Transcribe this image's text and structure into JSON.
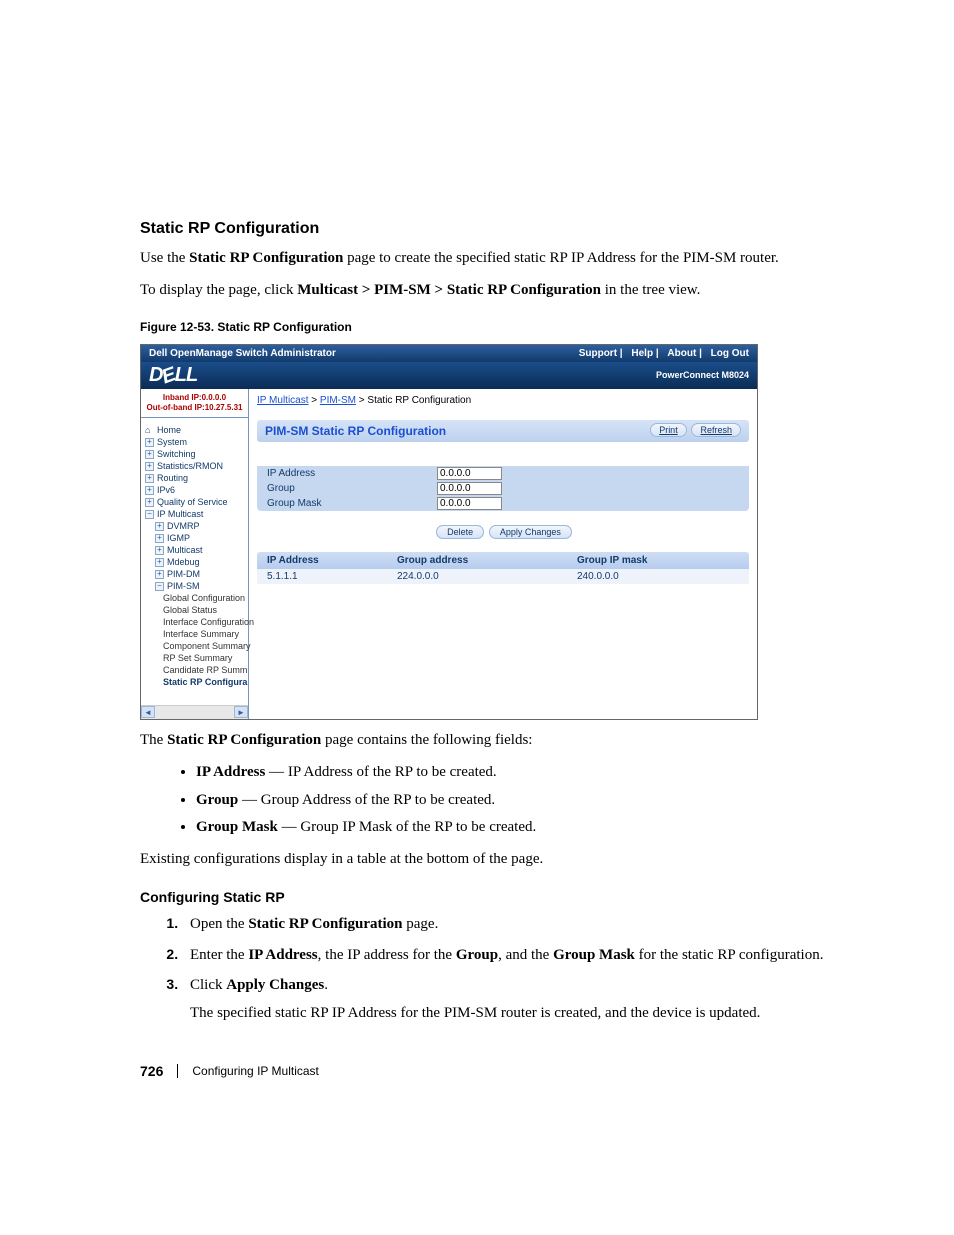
{
  "section": {
    "title": "Static RP Configuration",
    "intro_pre": "Use the ",
    "intro_bold": "Static RP Configuration",
    "intro_post": " page to create the specified static RP IP Address for the PIM-SM router.",
    "nav_pre": "To display the page, click ",
    "nav_bold": "Multicast > PIM-SM > Static RP Configuration",
    "nav_post": " in the tree view."
  },
  "figure": {
    "caption": "Figure 12-53.    Static RP Configuration"
  },
  "screenshot": {
    "window_title": "Dell OpenManage Switch Administrator",
    "top_links": {
      "support": "Support",
      "help": "Help",
      "about": "About",
      "logout": "Log Out"
    },
    "logo_text": "DELL",
    "model": "PowerConnect M8024",
    "ip_inband": "Inband IP:0.0.0.0",
    "ip_oob": "Out-of-band IP:10.27.5.31",
    "breadcrumb": {
      "a": "IP Multicast",
      "b": "PIM-SM",
      "c": "Static RP Configuration"
    },
    "tree": {
      "home": "Home",
      "system": "System",
      "switching": "Switching",
      "stats": "Statistics/RMON",
      "routing": "Routing",
      "ipv6": "IPv6",
      "qos": "Quality of Service",
      "ipm": "IP Multicast",
      "dvmrp": "DVMRP",
      "igmp": "IGMP",
      "multicast": "Multicast",
      "mdebug": "Mdebug",
      "pimdm": "PIM-DM",
      "pimsm": "PIM-SM",
      "gc": "Global Configuration",
      "gs": "Global Status",
      "ic": "Interface Configuration",
      "is": "Interface Summary",
      "cs": "Component Summary",
      "rpss": "RP Set Summary",
      "crs": "Candidate RP Summ",
      "sel": "Static RP Configura"
    },
    "panel_title": "PIM-SM Static RP Configuration",
    "print": "Print",
    "refresh": "Refresh",
    "form": {
      "ip_label": "IP Address",
      "ip_value": "0.0.0.0",
      "group_label": "Group",
      "group_value": "0.0.0.0",
      "mask_label": "Group Mask",
      "mask_value": "0.0.0.0"
    },
    "buttons": {
      "delete": "Delete",
      "apply": "Apply Changes"
    },
    "table": {
      "h1": "IP Address",
      "h2": "Group address",
      "h3": "Group IP mask",
      "r1a": "5.1.1.1",
      "r1b": "224.0.0.0",
      "r1c": "240.0.0.0"
    }
  },
  "below": {
    "contains_pre": "The ",
    "contains_bold": "Static RP Configuration",
    "contains_post": " page contains the following fields:",
    "f1_b": "IP Address",
    "f1_t": " — IP Address of the RP to be created.",
    "f2_b": "Group",
    "f2_t": " — Group Address of the RP to be created.",
    "f3_b": "Group Mask",
    "f3_t": " — Group IP Mask of the RP to be created.",
    "existing": "Existing configurations display in a table at the bottom of the page."
  },
  "configure": {
    "title": "Configuring Static RP",
    "s1_pre": "Open the ",
    "s1_b": "Static RP Configuration",
    "s1_post": " page.",
    "s2_pre": "Enter the ",
    "s2_b1": "IP Address",
    "s2_mid1": ", the IP address for the ",
    "s2_b2": "Group",
    "s2_mid2": ", and the ",
    "s2_b3": "Group Mask",
    "s2_post": " for the static RP configuration.",
    "s3_pre": "Click ",
    "s3_b": "Apply Changes",
    "s3_post": ".",
    "s3_note": "The specified static RP IP Address for the PIM-SM router is created, and the device is updated."
  },
  "footer": {
    "page": "726",
    "chapter": "Configuring IP Multicast"
  }
}
